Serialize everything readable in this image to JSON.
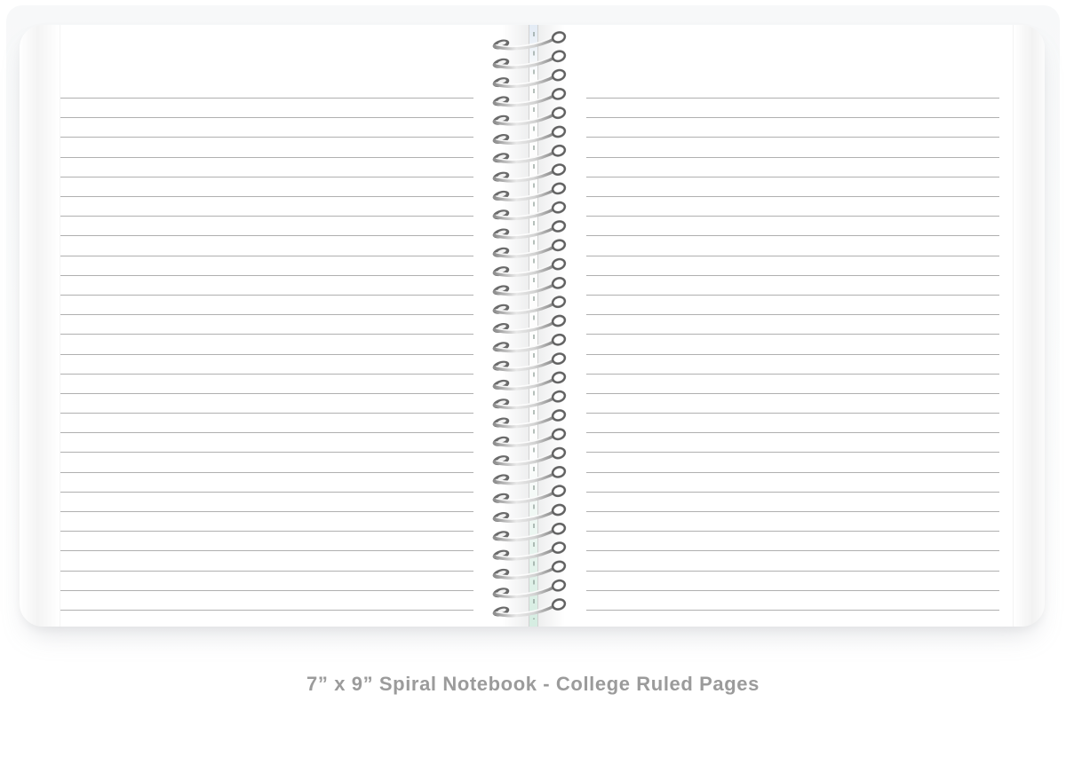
{
  "caption": {
    "text": "7” x 9” Spiral Notebook - College Ruled Pages"
  },
  "notebook": {
    "type": "spiral-notebook",
    "pages_visible": 2,
    "binding": {
      "type": "metal-wire-spiral",
      "coil_count": 31
    },
    "ruling": {
      "type": "college-ruled",
      "lines_per_page": 27
    }
  },
  "colors": {
    "background": "#ffffff",
    "backdrop_panel": "#f7f8f9",
    "page": "#ffffff",
    "ruled_line": "#b0b0b0",
    "gutter_line": "#d2d2d2",
    "gutter_mint_tint": "#d6ede2",
    "wire_dark": "#6a6a6a",
    "wire_light": "#e9e9e9",
    "caption_text": "#9b9b9b"
  }
}
